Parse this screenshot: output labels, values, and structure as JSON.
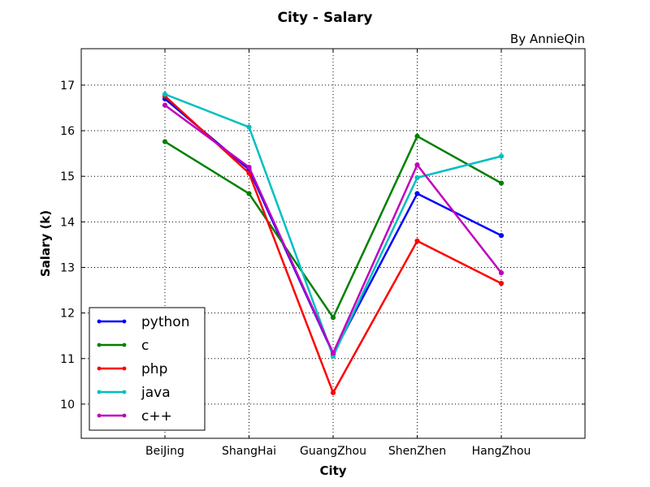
{
  "chart_data": {
    "type": "line",
    "title": "City - Salary",
    "subtitle": "By AnnieQin",
    "xlabel": "City",
    "ylabel": "Salary (k)",
    "categories": [
      "BeiJing",
      "ShangHai",
      "GuangZhou",
      "ShenZhen",
      "HangZhou"
    ],
    "ylim": [
      9.25,
      17.8
    ],
    "yticks": [
      10,
      11,
      12,
      13,
      14,
      15,
      16,
      17
    ],
    "grid": true,
    "legend_position": "lower-left",
    "series": [
      {
        "name": "python",
        "color": "#0000ff",
        "values": [
          16.7,
          15.15,
          11.1,
          14.62,
          13.7
        ]
      },
      {
        "name": "c",
        "color": "#008000",
        "values": [
          15.76,
          14.62,
          11.9,
          15.88,
          14.85
        ]
      },
      {
        "name": "php",
        "color": "#ff0000",
        "values": [
          16.76,
          15.07,
          10.25,
          13.58,
          12.65
        ]
      },
      {
        "name": "java",
        "color": "#00bfbf",
        "values": [
          16.8,
          16.08,
          11.05,
          14.97,
          15.44
        ]
      },
      {
        "name": "c++",
        "color": "#bf00bf",
        "values": [
          16.56,
          15.2,
          11.12,
          15.25,
          12.88
        ]
      }
    ]
  }
}
